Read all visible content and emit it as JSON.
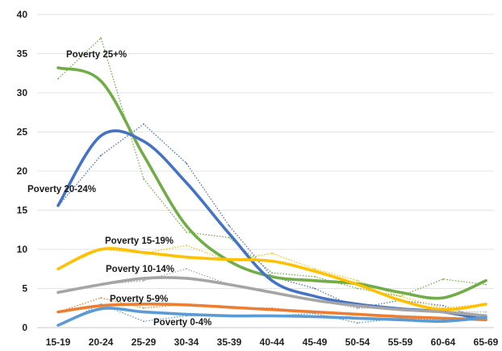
{
  "chart_data": {
    "type": "line",
    "title": "",
    "xlabel": "",
    "ylabel": "",
    "ylim": [
      0,
      40
    ],
    "yticks": [
      "0",
      "5",
      "10",
      "15",
      "20",
      "25",
      "30",
      "35",
      "40"
    ],
    "categories": [
      "15-19",
      "20-24",
      "25-29",
      "30-34",
      "35-39",
      "40-44",
      "45-49",
      "50-54",
      "55-59",
      "60-64",
      "65-69"
    ],
    "grid": true,
    "legend": "none (series labelled inline)",
    "series": [
      {
        "name": "Poverty 25+%",
        "color": "#70AD47",
        "observed": [
          31.8,
          37.0,
          19.0,
          12.2,
          11.5,
          7.0,
          6.5,
          5.0,
          4.0,
          6.2,
          5.5
        ],
        "trend": [
          33.2,
          31.5,
          22.0,
          13.0,
          8.5,
          6.5,
          6.0,
          5.6,
          4.5,
          3.8,
          6.0
        ]
      },
      {
        "name": "Poverty 20-24%",
        "color": "#4472C4",
        "observed": [
          15.5,
          22.0,
          26.0,
          21.0,
          13.0,
          6.5,
          5.0,
          2.5,
          3.5,
          2.8,
          1.0
        ],
        "trend": [
          15.6,
          24.5,
          23.8,
          18.5,
          12.0,
          6.0,
          4.0,
          3.0,
          2.4,
          2.0,
          1.0
        ]
      },
      {
        "name": "Poverty 15-19%",
        "color": "#FFC000",
        "observed": [
          7.5,
          10.0,
          9.5,
          10.5,
          8.5,
          9.5,
          7.5,
          6.0,
          4.0,
          2.5,
          3.0
        ],
        "trend": [
          7.5,
          10.0,
          9.6,
          9.0,
          8.7,
          8.5,
          7.2,
          5.5,
          3.5,
          2.3,
          3.0
        ]
      },
      {
        "name": "Poverty 10-14%",
        "color": "#A5A5A5",
        "observed": [
          4.5,
          5.5,
          6.0,
          7.5,
          5.5,
          4.5,
          3.5,
          2.5,
          2.5,
          2.0,
          2.0
        ],
        "trend": [
          4.5,
          5.5,
          6.3,
          6.3,
          5.5,
          4.5,
          3.5,
          2.8,
          2.3,
          2.0,
          1.5
        ]
      },
      {
        "name": "Poverty 5-9%",
        "color": "#ED7D31",
        "observed": [
          2.0,
          3.8,
          2.5,
          3.0,
          2.5,
          2.5,
          2.0,
          1.8,
          1.5,
          1.2,
          1.0
        ],
        "trend": [
          2.0,
          2.8,
          3.0,
          2.9,
          2.6,
          2.3,
          2.0,
          1.7,
          1.4,
          1.2,
          1.0
        ]
      },
      {
        "name": "Poverty 0-4%",
        "color": "#5B9BD5",
        "observed": [
          0.3,
          3.0,
          0.8,
          1.5,
          1.5,
          1.5,
          1.8,
          0.6,
          1.2,
          1.0,
          1.5
        ],
        "trend": [
          0.3,
          2.4,
          2.0,
          1.7,
          1.5,
          1.5,
          1.4,
          1.2,
          1.0,
          0.8,
          1.3
        ]
      }
    ]
  }
}
